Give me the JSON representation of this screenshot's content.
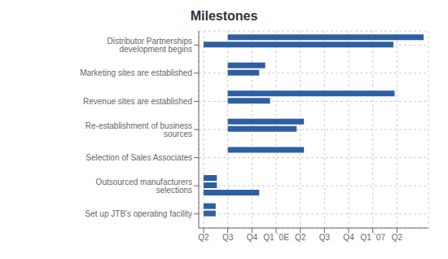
{
  "chart_data": {
    "type": "bar",
    "orientation": "horizontal",
    "title": "Milestones",
    "categories": [
      "Distributor Partnerships development begins",
      "Marketing sites are established",
      "Revenue sites are established",
      "Re-establishment of business sources",
      "Selection of Sales Associates",
      "Outsourced manufacturers selections",
      "Set up JTB's operating facility"
    ],
    "values": [
      [
        [
          1.0,
          9.1
        ],
        [
          0.0,
          7.85
        ]
      ],
      [
        [
          1.0,
          2.55
        ],
        [
          1.0,
          2.3
        ]
      ],
      [
        [
          1.0,
          7.9
        ],
        [
          1.0,
          2.75
        ]
      ],
      [
        [
          1.0,
          4.15
        ],
        [
          1.0,
          3.85
        ]
      ],
      [
        [
          1.0,
          4.15
        ]
      ],
      [
        [
          0.0,
          0.55
        ],
        [
          0.0,
          0.55
        ],
        [
          0.0,
          2.3
        ]
      ],
      [
        [
          0.0,
          0.5
        ],
        [
          0.0,
          0.5
        ]
      ]
    ],
    "color": "#2E5FA3",
    "xlim": [
      -0.2,
      9.3
    ],
    "xticks": [
      {
        "value": 0,
        "label": "Q2"
      },
      {
        "value": 1,
        "label": "Q3"
      },
      {
        "value": 2,
        "label": "Q4"
      },
      {
        "value": 3,
        "label": "Q1 `0E"
      },
      {
        "value": 4,
        "label": "Q2"
      },
      {
        "value": 5,
        "label": "Q3"
      },
      {
        "value": 6,
        "label": "Q4"
      },
      {
        "value": 7,
        "label": "Q1 `07"
      },
      {
        "value": 8,
        "label": "Q2"
      }
    ],
    "grid": true
  }
}
